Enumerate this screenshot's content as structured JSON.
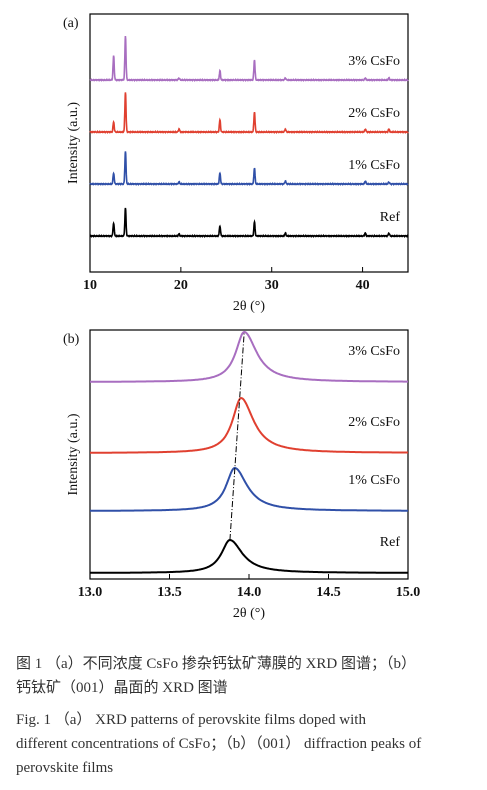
{
  "colors": {
    "ref": "#000000",
    "one": "#3050a8",
    "two": "#e04030",
    "three": "#a86ec0"
  },
  "chart_data": [
    {
      "type": "line",
      "panel_label": "(a)",
      "xlabel": "2θ (°)",
      "ylabel": "Intensity (a.u.)",
      "xlim": [
        10,
        45
      ],
      "xticks": [
        10,
        20,
        30,
        40
      ],
      "grid": false,
      "y_tick_labels": false,
      "series": [
        {
          "name": "Ref",
          "peaks": [
            [
              12.6,
              13
            ],
            [
              13.9,
              28
            ],
            [
              19.8,
              2
            ],
            [
              24.3,
              10
            ],
            [
              28.1,
              14
            ],
            [
              31.5,
              3
            ],
            [
              40.3,
              3
            ],
            [
              42.9,
              3
            ]
          ]
        },
        {
          "name": "1% CsFo",
          "peaks": [
            [
              12.6,
              11
            ],
            [
              13.9,
              33
            ],
            [
              19.8,
              2
            ],
            [
              24.3,
              11
            ],
            [
              28.1,
              16
            ],
            [
              31.5,
              3
            ],
            [
              40.3,
              3
            ],
            [
              42.9,
              2
            ]
          ]
        },
        {
          "name": "2% CsFo",
          "peaks": [
            [
              12.6,
              10
            ],
            [
              13.9,
              40
            ],
            [
              19.8,
              3
            ],
            [
              24.3,
              12
            ],
            [
              28.1,
              20
            ],
            [
              31.5,
              3
            ],
            [
              40.3,
              3
            ],
            [
              42.9,
              3
            ]
          ]
        },
        {
          "name": "3% CsFo",
          "peaks": [
            [
              12.6,
              24
            ],
            [
              13.9,
              44
            ],
            [
              19.8,
              2
            ],
            [
              24.3,
              9
            ],
            [
              28.1,
              20
            ],
            [
              31.5,
              2
            ],
            [
              40.3,
              2
            ],
            [
              42.9,
              2
            ]
          ]
        }
      ]
    },
    {
      "type": "line",
      "panel_label": "(b)",
      "xlabel": "2θ (°)",
      "ylabel": "Intensity (a.u.)",
      "xlim": [
        13.0,
        15.0
      ],
      "xticks": [
        13.0,
        13.5,
        14.0,
        14.5,
        15.0
      ],
      "grid": false,
      "y_tick_labels": false,
      "series": [
        {
          "name": "Ref",
          "peak_center": 13.88
        },
        {
          "name": "1% CsFo",
          "peak_center": 13.91
        },
        {
          "name": "2% CsFo",
          "peak_center": 13.95
        },
        {
          "name": "3% CsFo",
          "peak_center": 13.97
        }
      ]
    }
  ],
  "caption": {
    "zh_line1": "图 1  （a）不同浓度 CsFo 掺杂钙钛矿薄膜的 XRD 图谱；（b）",
    "zh_line2": "钙钛矿（001）晶面的 XRD 图谱",
    "en_line1": "Fig. 1  （a） XRD patterns of perovskite films doped with",
    "en_line2": "different concentrations of CsFo；（b）（001） diffraction peaks of",
    "en_line3": "perovskite films"
  }
}
